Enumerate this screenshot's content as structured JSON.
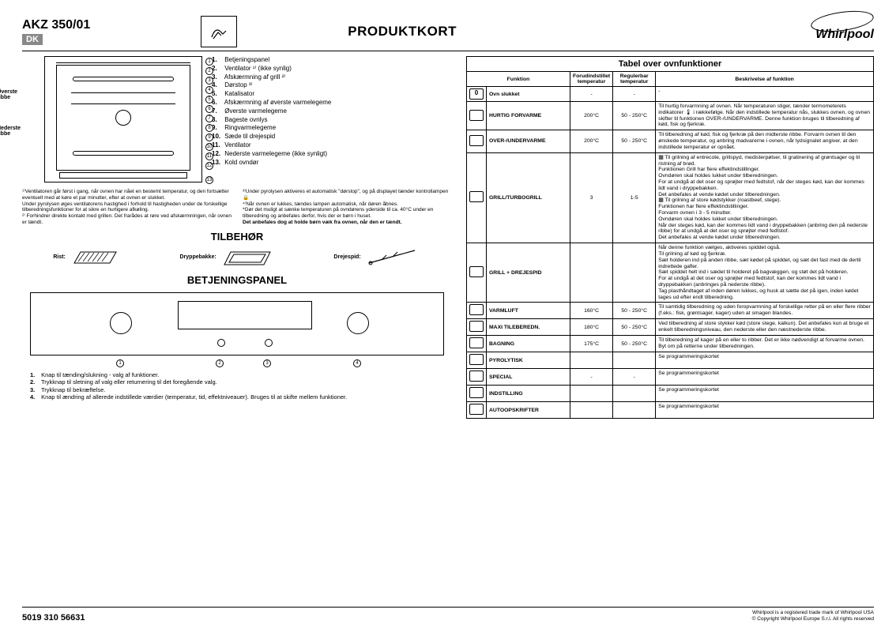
{
  "header": {
    "model": "AKZ 350/01",
    "country": "DK",
    "title": "PRODUKTKORT",
    "brand": "Whirlpool"
  },
  "oven_labels": {
    "top_rib": "Øverste ribbe",
    "bottom_rib": "Nederste ribbe"
  },
  "parts": [
    "Betjeningspanel",
    "Ventilator ¹⁾ (ikke synlig)",
    "Afskærmning af grill ²⁾",
    "Dørstop ³⁾",
    "Katalisator",
    "Afskærmning af øverste varmelegeme",
    "Øverste varmelegeme",
    "Bageste ovnlys",
    "Ringvarmelegeme",
    "Sæde til drejespid",
    "Ventilator",
    "Nederste varmelegeme (ikke synligt)",
    "Kold ovndør"
  ],
  "footnotes": {
    "left": "¹⁾Ventilatoren går først i gang, når ovnen har nået en bestemt temperatur, og den fortsætter eventuelt med at køre et par minutter, efter at ovnen er slukket.\nUnder pyrolysen øges ventilatorens hastighed i forhold til hastigheden under de forskellige tilberedningsfunktioner for at sikre en hurtigere afkøling.\n²⁾ Forhindrer direkte kontakt med grillen. Det frarådes at røre ved afskærmningen, når ovnen er tændt.",
    "right_a": "³⁾Under pyrolysen aktiveres et automatisk \"dørstop\", og på displayet tænder kontrollampen 🔒\n⁴⁾Når ovnen er lukkes, tændes lampen automatisk, når døren åbnes.",
    "right_b": "*Gør det muligt at sænke temperaturen på ovndørens yderside til ca. 40°C under en tilberedning og anbefales derfor, hvis der er børn i huset.",
    "right_c": "Det anbefales dog at holde børn væk fra ovnen, når den er tændt."
  },
  "sections": {
    "accessories": "TILBEHØR",
    "panel": "BETJENINGSPANEL"
  },
  "accessories": {
    "rack": "Rist:",
    "drip": "Dryppebakke:",
    "spit": "Drejespid:"
  },
  "panel_legend": [
    "Knap til tænding/slukning - valg af funktioner.",
    "Trykknap til sletning af valg eller returnering til det foregående valg.",
    "Trykknap til bekræftelse.",
    "Knap til ændring af allerede indstillede værdier (temperatur, tid, effektniveauer). Bruges til at skifte mellem funktioner."
  ],
  "table": {
    "title": "Tabel over ovnfunktioner",
    "headers": {
      "func": "Funktion",
      "preset": "Forudindstillet temperatur",
      "range": "Regulerbar temperatur",
      "desc": "Beskrivelse af funktion"
    },
    "rows": [
      {
        "icon": "0",
        "name": "Ovn slukket",
        "preset": "-",
        "range": "-",
        "desc": "-"
      },
      {
        "icon": "⚡",
        "name": "HURTIG FORVARME",
        "preset": "200°C",
        "range": "50 - 250°C",
        "desc": "Til hurtig forvarmning af ovnen. Når temperaturen stiger, tænder termometerets indikatorer 🌡 i rækkefølge. Når den indstillede temperatur nås, slukkes ovnen, og ovnen skifter til funktionen OVER-/UNDERVARME. Denne funktion bruges til tilberedning af kød, fisk og fjerkræ."
      },
      {
        "icon": "▭",
        "name": "OVER-/UNDERVARME",
        "preset": "200°C",
        "range": "50 - 250°C",
        "desc": "Til tilberedning af kød, fisk og fjerkræ på den midterste ribbe. Forvarm ovnen til den ønskede temperatur, og anbring madvarerne i ovnen, når lydsignalet angiver, at den indstillede temperatur er opnået."
      },
      {
        "icon": "▦",
        "name": "GRILL/TURBOGRILL",
        "preset": "3",
        "range": "1-5",
        "desc": "▦ Til grilning af entrecote, grillspyd, medisterpølser, til gratinering af grøntsager og til ristning af brød.\nFunktionen Grill har flere effektindstillinger.\nOvndøren skal holdes lukket under tilberedningen.\nFor at undgå at det oser og sprøjter med fedtstof, når der steges kød, kan der kommes lidt vand i dryppebakken.\n Det anbefales at vende kødet under tilberedningen.\n▦ Til grilning af store kødstykker (roastbeef, stege).\nFunktionen har flere effektindstillinger.\nForvarm ovnen i 3 - 5 minutter.\nOvndøren skal holdes lukket under tilberedningen.\nNår der steges kød, kan der kommes lidt vand i dryppebakken (anbring den på nederste ribbe) for at undgå at det oser og sprøjter med fedtstof.\nDet anbefales at vende kødet under tilberedningen."
      },
      {
        "icon": "▦",
        "name": "GRILL + DREJESPID",
        "preset": "",
        "range": "",
        "desc": "Når denne funktion vælges, aktiveres spiddet også.\nTil grilning af kød og fjerkræ.\nSæt holderen ind på anden ribbe, sæt kødet på spiddet, og sæt det fast med de dertil indrettede gafler.\nSæt spiddet helt ind i sædet til holderet på bagvæggen, og støt det på holderen.\nFor at undgå at det oser og sprøjter med fedtstof, kan der kommes lidt vand i dryppebakken (anbringes på nederste ribbe).\nTag plasthåndtaget af inden døren lukkes, og husk at sætte det på igen, inden kødet tages ud efter endt tilberedning."
      },
      {
        "icon": "❋",
        "name": "VARMLUFT",
        "preset": "160°C",
        "range": "50 - 250°C",
        "desc": "Til samtidig tilberedning og uden foropvarmning af forskellige retter på en eller flere ribber (f.eks.: fisk, grøntsager, kager) uden at smagen blandes."
      },
      {
        "icon": "❋",
        "name": "MAXI TILEBEREDN.",
        "preset": "180°C",
        "range": "50 - 250°C",
        "desc": "Ved tilberedning af store stykker kød (store stege, kalkun). Det anbefales kun at bruge et enkelt tilberedningsniveau, den nederste eller den næstnederste ribbe."
      },
      {
        "icon": "≋",
        "name": "BAGNING",
        "preset": "175°C",
        "range": "50 - 250°C",
        "desc": "Til tilberedning af kager på en eller to ribber. Det er ikke nødvendigt at forvarme ovnen. Byt om på retterne under tilberedningen."
      },
      {
        "icon": "◈",
        "name": "PYROLYTISK",
        "preset": "",
        "range": "",
        "desc": "Se programmeringskortet"
      },
      {
        "icon": "✦",
        "name": "SPECIAL",
        "preset": "-",
        "range": "-",
        "desc": "Se programmeringskortet"
      },
      {
        "icon": "⚙",
        "name": "INDSTILLING",
        "preset": "",
        "range": "",
        "desc": "Se programmeringskortet"
      },
      {
        "icon": "👨‍🍳",
        "name": "AUTOOPSKRIFTER",
        "preset": "",
        "range": "",
        "desc": "Se programmeringskortet"
      }
    ]
  },
  "footer": {
    "partno": "5019 310 56631",
    "legal1": "Whirlpool is a registered trade mark of Whirlpool USA",
    "legal2": "© Copyright Whirlpool Europe S.r.l. All rights reserved"
  }
}
